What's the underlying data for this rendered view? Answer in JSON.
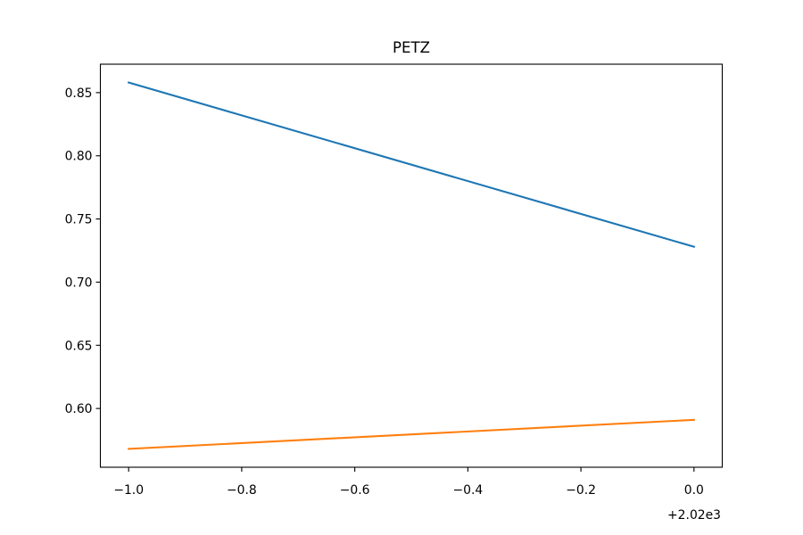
{
  "chart_data": {
    "type": "line",
    "title": "PETZ",
    "xlabel": "",
    "ylabel": "",
    "x": [
      -1.0,
      0.0
    ],
    "x_offset_label": "+2.02e3",
    "xlim": [
      -1.05,
      0.05
    ],
    "ylim": [
      0.5535,
      0.8725
    ],
    "xticks": [
      -1.0,
      -0.8,
      -0.6,
      -0.4,
      -0.2,
      0.0
    ],
    "xtick_labels": [
      "−1.0",
      "−0.8",
      "−0.6",
      "−0.4",
      "−0.2",
      "0.0"
    ],
    "yticks": [
      0.6,
      0.65,
      0.7,
      0.75,
      0.8,
      0.85
    ],
    "ytick_labels": [
      "0.60",
      "0.65",
      "0.70",
      "0.75",
      "0.80",
      "0.85"
    ],
    "grid": false,
    "series": [
      {
        "color": "#1f77b4",
        "values": [
          0.858,
          0.728
        ]
      },
      {
        "color": "#ff7f0e",
        "values": [
          0.568,
          0.591
        ]
      }
    ]
  }
}
